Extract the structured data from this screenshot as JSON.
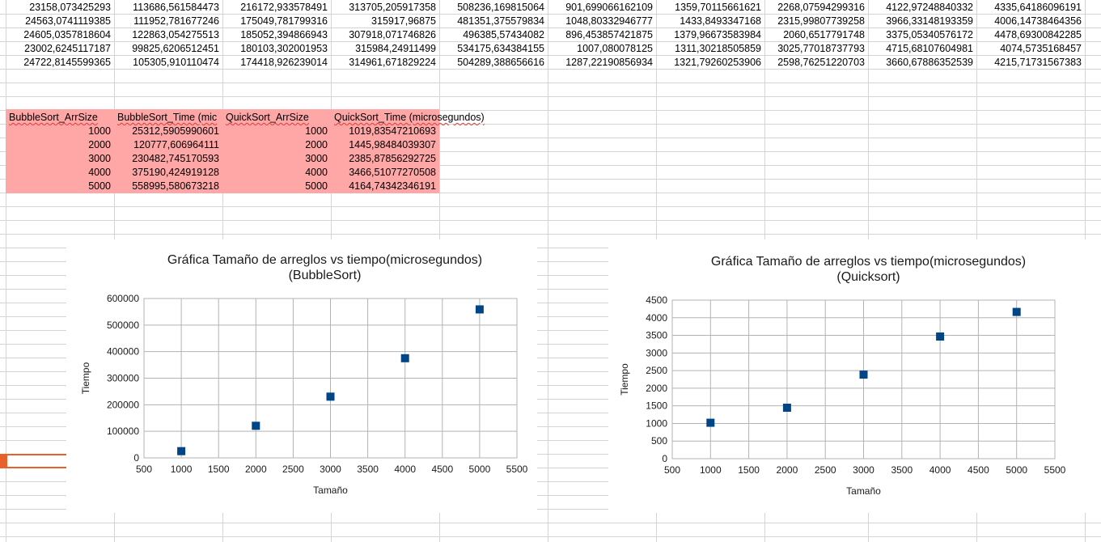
{
  "top_rows": [
    [
      "23158,073425293",
      "113686,561584473",
      "216172,933578491",
      "313705,205917358",
      "508236,169815064",
      "901,699066162109",
      "1359,70115661621",
      "2268,07594299316",
      "4122,97248840332",
      "4335,64186096191"
    ],
    [
      "24563,0741119385",
      "111952,781677246",
      "175049,781799316",
      "315917,96875",
      "481351,375579834",
      "1048,80332946777",
      "1433,8493347168",
      "2315,99807739258",
      "3966,33148193359",
      "4006,14738464356"
    ],
    [
      "24605,0357818604",
      "122863,054275513",
      "185052,394866943",
      "307918,071746826",
      "496385,57434082",
      "896,453857421875",
      "1379,96673583984",
      "2060,6517791748",
      "3375,05340576172",
      "4478,69300842285"
    ],
    [
      "23002,6245117187",
      "99825,6206512451",
      "180103,302001953",
      "315984,24911499",
      "534175,634384155",
      "1007,080078125",
      "1311,30218505859",
      "3025,77018737793",
      "4715,68107604981",
      "4074,5735168457"
    ],
    [
      "24722,8145599365",
      "105305,910110474",
      "174418,926239014",
      "314961,671829224",
      "504289,388656616",
      "1287,22190856934",
      "1321,79260253906",
      "2598,76251220703",
      "3660,67886352539",
      "4215,71731567383"
    ]
  ],
  "summary": {
    "headers": [
      "BubbleSort_ArrSize",
      "BubbleSort_Time (mic",
      "QuickSort_ArrSize",
      "QuickSort_Time (microsegundos)"
    ],
    "rows": [
      [
        "1000",
        "25312,5905990601",
        "1000",
        "1019,83547210693"
      ],
      [
        "2000",
        "120777,606964111",
        "2000",
        "1445,98484039307"
      ],
      [
        "3000",
        "230482,745170593",
        "3000",
        "2385,87856292725"
      ],
      [
        "4000",
        "375190,424919128",
        "4000",
        "3466,51077270508"
      ],
      [
        "5000",
        "558995,580673218",
        "5000",
        "4164,74342346191"
      ]
    ]
  },
  "chart_data": [
    {
      "type": "scatter",
      "title": "Gráfica Tamaño de arreglos vs tiempo(microsegundos)",
      "subtitle": "(BubbleSort)",
      "xlabel": "Tamaño",
      "ylabel": "Tiempo",
      "x": [
        1000,
        2000,
        3000,
        4000,
        5000
      ],
      "y": [
        25312.59,
        120777.61,
        230482.75,
        375190.42,
        558995.58
      ],
      "xlim": [
        500,
        5500
      ],
      "ylim": [
        0,
        600000
      ],
      "xticks": [
        500,
        1000,
        1500,
        2000,
        2500,
        3000,
        3500,
        4000,
        4500,
        5000,
        5500
      ],
      "yticks": [
        0,
        100000,
        200000,
        300000,
        400000,
        500000,
        600000
      ],
      "grid": true,
      "marker_color": "#004586"
    },
    {
      "type": "scatter",
      "title": "Gráfica Tamaño de arreglos vs tiempo(microsegundos)",
      "subtitle": "(Quicksort)",
      "xlabel": "Tamaño",
      "ylabel": "Tiempo",
      "x": [
        1000,
        2000,
        3000,
        4000,
        5000
      ],
      "y": [
        1019.84,
        1445.98,
        2385.88,
        3466.51,
        4164.74
      ],
      "xlim": [
        500,
        5500
      ],
      "ylim": [
        0,
        4500
      ],
      "xticks": [
        500,
        1000,
        1500,
        2000,
        2500,
        3000,
        3500,
        4000,
        4500,
        5000,
        5500
      ],
      "yticks": [
        0,
        500,
        1000,
        1500,
        2000,
        2500,
        3000,
        3500,
        4000,
        4500
      ],
      "grid": true,
      "marker_color": "#004586"
    }
  ]
}
